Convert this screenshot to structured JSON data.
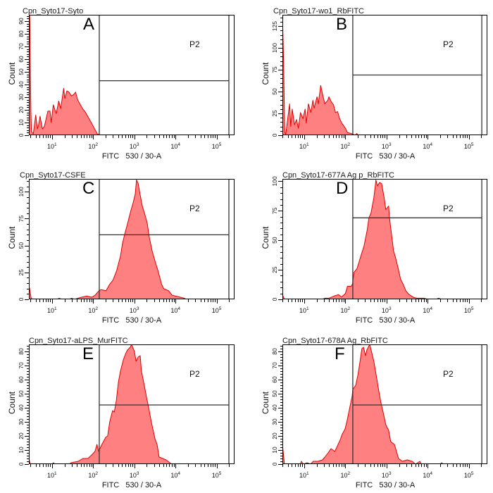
{
  "colors": {
    "histogram_fill": "#FF8080",
    "histogram_outline": "#E00000",
    "gate_line": "#333333",
    "axis": "#000000"
  },
  "chart_data": [
    {
      "type": "area",
      "panel_label": "A",
      "title": "Cpn_Syto17-Syto",
      "xlabel": "FITC   530 / 30-A",
      "ylabel": "Count",
      "xscale": "log",
      "xlim": [
        2.73,
        270000
      ],
      "ylim": [
        0,
        95
      ],
      "yticks": [
        0,
        10,
        20,
        30,
        40,
        50,
        60,
        70,
        80,
        90
      ],
      "yminor_step": 2,
      "xticks": [
        {
          "value": 10,
          "base": "10",
          "exp": "1"
        },
        {
          "value": 100,
          "base": "10",
          "exp": "2"
        },
        {
          "value": 1000,
          "base": "10",
          "exp": "3"
        },
        {
          "value": 10000,
          "base": "10",
          "exp": "4"
        },
        {
          "value": 100000,
          "base": "10",
          "exp": "5"
        }
      ],
      "grid": false,
      "gate": {
        "name": "P2",
        "x_min": 140,
        "x_max": 197000,
        "level": 43
      },
      "series": [
        {
          "name": "Count",
          "x": [
            2.75,
            2.85,
            2.95,
            3.05,
            3.15,
            3.5,
            4.0,
            4.4,
            4.7,
            5.1,
            5.8,
            6.5,
            7.9,
            8.9,
            9.5,
            10.7,
            12.6,
            14.5,
            16.2,
            19.1,
            20.4,
            22.9,
            25.7,
            29.5,
            33.1,
            37.2,
            41.7,
            46.8,
            55,
            65,
            76,
            93,
            112,
            126,
            145
          ],
          "y": [
            100,
            100,
            60,
            20,
            3,
            1,
            16,
            5,
            8,
            15,
            5,
            7,
            19,
            19,
            10,
            24,
            17,
            27,
            21,
            37,
            29,
            35,
            34,
            31,
            32,
            34,
            28,
            25,
            21,
            18,
            14,
            9,
            4,
            1,
            0
          ]
        }
      ]
    },
    {
      "type": "area",
      "panel_label": "B",
      "title": "Cpn_Syto17-wo1_RbFITC",
      "xlabel": "FITC   530 / 30-A",
      "ylabel": "Count",
      "xscale": "log",
      "xlim": [
        2.95,
        280000
      ],
      "ylim": [
        0,
        138
      ],
      "yticks": [
        0,
        25,
        50,
        75,
        100,
        125
      ],
      "yminor_step": 5,
      "xticks": [
        {
          "value": 10,
          "base": "10",
          "exp": "1"
        },
        {
          "value": 100,
          "base": "10",
          "exp": "2"
        },
        {
          "value": 1000,
          "base": "10",
          "exp": "3"
        },
        {
          "value": 10000,
          "base": "10",
          "exp": "4"
        },
        {
          "value": 100000,
          "base": "10",
          "exp": "5"
        }
      ],
      "grid": false,
      "gate": {
        "name": "P2",
        "x_min": 151,
        "x_max": 205000,
        "level": 69
      },
      "series": [
        {
          "name": "Count",
          "x": [
            2.95,
            3.15,
            3.35,
            3.55,
            4.4,
            4.7,
            5.1,
            5.8,
            6.5,
            7.2,
            8.1,
            9.3,
            10.5,
            11.2,
            12.6,
            14.5,
            16.2,
            17.4,
            20.4,
            21.9,
            25.1,
            28.2,
            31.6,
            37.2,
            39.8,
            45.7,
            51.3,
            57.5,
            64.6,
            72.4,
            81.3,
            100,
            112,
            138,
            155,
            170,
            190,
            205
          ],
          "y": [
            140,
            85,
            4,
            1,
            36,
            10,
            30,
            12,
            18,
            8,
            26,
            19,
            30,
            14,
            36,
            26,
            40,
            31,
            44,
            36,
            57,
            46,
            36,
            40,
            44,
            38,
            35,
            26,
            27,
            19,
            14,
            8,
            3,
            2,
            1,
            0,
            2,
            0
          ]
        }
      ]
    },
    {
      "type": "area",
      "panel_label": "C",
      "title": "Cpn_Syto17-CSFE",
      "xlabel": "FITC   530 / 30-A",
      "ylabel": "Count",
      "xscale": "log",
      "xlim": [
        2.73,
        270000
      ],
      "ylim": [
        0,
        112
      ],
      "yticks": [
        0,
        25,
        50,
        75,
        100
      ],
      "yminor_step": 5,
      "xticks": [
        {
          "value": 10,
          "base": "10",
          "exp": "1"
        },
        {
          "value": 100,
          "base": "10",
          "exp": "2"
        },
        {
          "value": 1000,
          "base": "10",
          "exp": "3"
        },
        {
          "value": 10000,
          "base": "10",
          "exp": "4"
        },
        {
          "value": 100000,
          "base": "10",
          "exp": "5"
        }
      ],
      "grid": false,
      "gate": {
        "name": "P2",
        "x_min": 140,
        "x_max": 197000,
        "level": 60
      },
      "series": [
        {
          "name": "Count",
          "x": [
            2.73,
            2.85,
            3.1,
            3.4,
            13,
            15,
            17,
            26,
            30,
            35,
            42,
            52,
            69,
            93,
            112,
            138,
            155,
            204,
            251,
            302,
            372,
            457,
            513,
            575,
            676,
            813,
            933,
            1047,
            1122,
            1230,
            1380,
            1549,
            1820,
            2042,
            2291,
            2692,
            3311,
            3715,
            4571,
            5129,
            6761,
            8128,
            10000,
            13183,
            16218,
            18197
          ],
          "y": [
            12,
            10,
            1,
            0,
            0,
            1,
            0,
            0,
            1,
            0,
            1,
            2,
            3,
            2,
            4,
            8,
            9,
            8,
            14,
            18,
            27,
            40,
            52,
            60,
            70,
            82,
            90,
            98,
            111,
            108,
            97,
            87,
            78,
            71,
            58,
            45,
            33,
            27,
            14,
            10,
            8,
            4,
            3,
            2,
            1,
            0
          ]
        }
      ]
    },
    {
      "type": "area",
      "panel_label": "D",
      "title": "Cpn_Syto17-677A Ag p_RbFITC",
      "xlabel": "FITC   530 / 30-A",
      "ylabel": "Count",
      "xscale": "log",
      "xlim": [
        2.95,
        280000
      ],
      "ylim": [
        0,
        102
      ],
      "yticks": [
        0,
        25,
        50,
        75,
        100
      ],
      "yminor_step": 5,
      "xticks": [
        {
          "value": 10,
          "base": "10",
          "exp": "1"
        },
        {
          "value": 100,
          "base": "10",
          "exp": "2"
        },
        {
          "value": 1000,
          "base": "10",
          "exp": "3"
        },
        {
          "value": 10000,
          "base": "10",
          "exp": "4"
        },
        {
          "value": 100000,
          "base": "10",
          "exp": "5"
        }
      ],
      "grid": false,
      "gate": {
        "name": "P2",
        "x_min": 151,
        "x_max": 205000,
        "level": 69
      },
      "series": [
        {
          "name": "Count",
          "x": [
            2.95,
            3.3,
            28,
            31.6,
            40,
            55,
            67.6,
            81,
            100,
            112,
            138,
            148,
            162,
            191,
            229,
            282,
            339,
            372,
            417,
            490,
            550,
            603,
            676,
            759,
            813,
            891,
            955,
            1122,
            1175,
            1318,
            1479,
            1660,
            1950,
            2188,
            2512,
            2951,
            3548,
            4365,
            5248,
            6457,
            8128,
            10000,
            16000,
            18197,
            21878
          ],
          "y": [
            4,
            0,
            0,
            1,
            1,
            3,
            4,
            2,
            5,
            11,
            11,
            13,
            23,
            26,
            35,
            45,
            59,
            69,
            73,
            86,
            101,
            96,
            99,
            98,
            92,
            84,
            76,
            79,
            69,
            55,
            41,
            35,
            25,
            17,
            13,
            7,
            4,
            2,
            1,
            1,
            1,
            0,
            0,
            1,
            0
          ]
        }
      ]
    },
    {
      "type": "area",
      "panel_label": "E",
      "title": "Cpn_Syto17-aLPS_MurFITC",
      "xlabel": "FITC   530 / 30-A",
      "ylabel": "Count",
      "xscale": "log",
      "xlim": [
        2.73,
        270000
      ],
      "ylim": [
        0,
        85
      ],
      "yticks": [
        0,
        10,
        20,
        30,
        40,
        50,
        60,
        70,
        80
      ],
      "yminor_step": 2,
      "xticks": [
        {
          "value": 10,
          "base": "10",
          "exp": "1"
        },
        {
          "value": 100,
          "base": "10",
          "exp": "2"
        },
        {
          "value": 1000,
          "base": "10",
          "exp": "3"
        },
        {
          "value": 10000,
          "base": "10",
          "exp": "4"
        },
        {
          "value": 100000,
          "base": "10",
          "exp": "5"
        }
      ],
      "grid": false,
      "gate": {
        "name": "P2",
        "x_min": 140,
        "x_max": 197000,
        "level": 42
      },
      "series": [
        {
          "name": "Count",
          "x": [
            2.73,
            2.95,
            10,
            10.8,
            11.7,
            26,
            29,
            43,
            56,
            74,
            95,
            110,
            123,
            135,
            162,
            200,
            224,
            251,
            295,
            324,
            363,
            407,
            457,
            537,
            603,
            676,
            794,
            851,
            1000,
            1096,
            1230,
            1380,
            1479,
            1738,
            1950,
            2188,
            2570,
            3162,
            3548,
            3981,
            4898,
            5888,
            7244,
            7762
          ],
          "y": [
            4,
            0,
            0,
            1,
            0,
            0,
            1,
            2,
            4,
            4,
            7,
            9,
            14,
            9,
            14,
            19,
            20,
            30,
            38,
            37,
            45,
            58,
            66,
            74,
            78,
            81,
            83,
            85,
            80,
            73,
            76,
            77,
            66,
            56,
            48,
            41,
            30,
            18,
            14,
            5,
            4,
            3,
            1,
            0
          ]
        }
      ]
    },
    {
      "type": "area",
      "panel_label": "F",
      "title": "Cpn_Syto17-678A Ag_RbFITC",
      "xlabel": "FITC   530 / 30-A",
      "ylabel": "Count",
      "xscale": "log",
      "xlim": [
        2.95,
        280000
      ],
      "ylim": [
        0,
        85
      ],
      "yticks": [
        0,
        10,
        20,
        30,
        40,
        50,
        60,
        70,
        80
      ],
      "yminor_step": 2,
      "xticks": [
        {
          "value": 10,
          "base": "10",
          "exp": "1"
        },
        {
          "value": 100,
          "base": "10",
          "exp": "2"
        },
        {
          "value": 1000,
          "base": "10",
          "exp": "3"
        },
        {
          "value": 10000,
          "base": "10",
          "exp": "4"
        },
        {
          "value": 100000,
          "base": "10",
          "exp": "5"
        }
      ],
      "grid": false,
      "gate": {
        "name": "P2",
        "x_min": 151,
        "x_max": 205000,
        "level": 42
      },
      "series": [
        {
          "name": "Count",
          "x": [
            2.95,
            3.1,
            3.3,
            8,
            8.5,
            9.6,
            11.7,
            14.2,
            16.6,
            21.4,
            27.7,
            31.6,
            38,
            44.7,
            55,
            61.7,
            74,
            83,
            98,
            110,
            123,
            145,
            151,
            178,
            200,
            224,
            251,
            275,
            309,
            331,
            389,
            437,
            490,
            575,
            646,
            724,
            851,
            955,
            1122,
            1259,
            1549,
            1738,
            1950,
            2399,
            3162,
            4169,
            5012,
            6457,
            6918,
            20000,
            21878,
            23442
          ],
          "y": [
            14,
            8,
            0,
            0,
            2,
            0,
            1,
            0,
            2,
            2,
            3,
            5,
            8,
            11,
            9,
            12,
            17,
            21,
            25,
            31,
            38,
            48,
            53,
            56,
            63,
            72,
            82,
            83,
            77,
            81,
            85,
            79,
            73,
            61,
            52,
            44,
            35,
            28,
            24,
            16,
            14,
            9,
            4,
            2,
            3,
            2,
            0,
            2,
            0,
            0,
            1,
            0
          ]
        }
      ]
    }
  ]
}
